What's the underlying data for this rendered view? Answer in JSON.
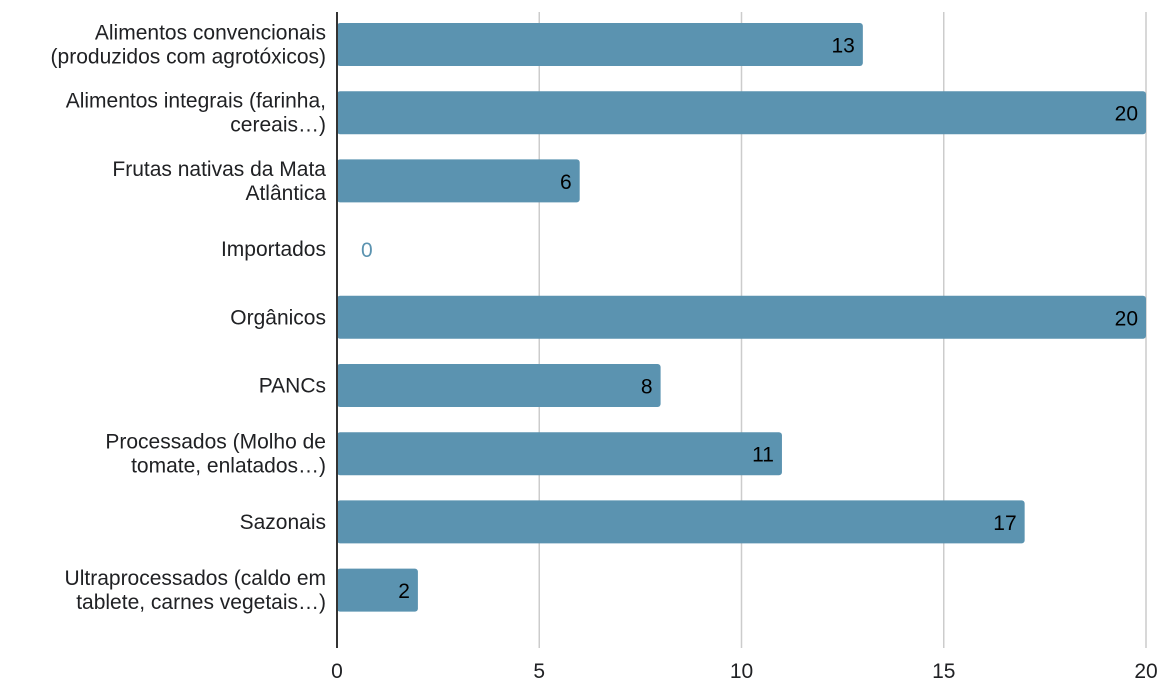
{
  "chart_data": {
    "type": "bar",
    "orientation": "horizontal",
    "categories": [
      [
        "Alimentos convencionais",
        "(produzidos com agrotóxicos)"
      ],
      [
        "Alimentos integrais (farinha,",
        "cereais…)"
      ],
      [
        "Frutas nativas da Mata",
        "Atlântica"
      ],
      [
        "Importados"
      ],
      [
        "Orgânicos"
      ],
      [
        "PANCs"
      ],
      [
        "Processados (Molho de",
        "tomate, enlatados…)"
      ],
      [
        "Sazonais"
      ],
      [
        "Ultraprocessados (caldo em",
        "tablete, carnes vegetais…)"
      ]
    ],
    "values": [
      13,
      20,
      6,
      0,
      20,
      8,
      11,
      17,
      2
    ],
    "data_labels": [
      "13",
      "20",
      "6",
      "0",
      "20",
      "8",
      "11",
      "17",
      "2"
    ],
    "xlim": [
      0,
      20
    ],
    "x_ticks": [
      0,
      5,
      10,
      15,
      20
    ],
    "x_tick_labels": [
      "0",
      "5",
      "10",
      "15",
      "20"
    ],
    "grid": "vertical",
    "legend": "none",
    "title": "",
    "xlabel": "",
    "ylabel": ""
  },
  "colors": {
    "bar": "#5b93b0",
    "grid": "#cccccc",
    "axis": "#333333",
    "text": "#202124",
    "value_inside": "#000000",
    "value_outside": "#5b93b0"
  }
}
